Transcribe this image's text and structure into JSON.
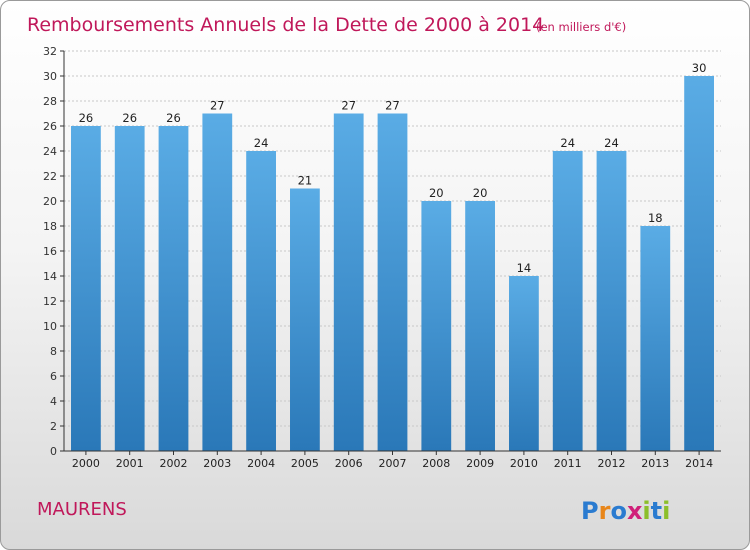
{
  "header": {
    "title": "Remboursements Annuels de la Dette de 2000 à 2014",
    "subtitle": "(en milliers d'€)"
  },
  "footer": {
    "commune": "MAURENS",
    "logo_text": "Proxiti"
  },
  "colors": {
    "title": "#c0185a",
    "bar_top": "#5aace5",
    "bar_bottom": "#2a78b8"
  },
  "chart_data": {
    "type": "bar",
    "title": "Remboursements Annuels de la Dette de 2000 à 2014",
    "subtitle": "(en milliers d'€)",
    "categories": [
      "2000",
      "2001",
      "2002",
      "2003",
      "2004",
      "2005",
      "2006",
      "2007",
      "2008",
      "2009",
      "2010",
      "2011",
      "2012",
      "2013",
      "2014"
    ],
    "values": [
      26,
      26,
      26,
      27,
      24,
      21,
      27,
      27,
      20,
      20,
      14,
      24,
      24,
      18,
      30
    ],
    "ylim": [
      0,
      32
    ],
    "yticks": [
      0,
      2,
      4,
      6,
      8,
      10,
      12,
      14,
      16,
      18,
      20,
      22,
      24,
      26,
      28,
      30,
      32
    ],
    "xlabel": "",
    "ylabel": "",
    "grid": true
  }
}
